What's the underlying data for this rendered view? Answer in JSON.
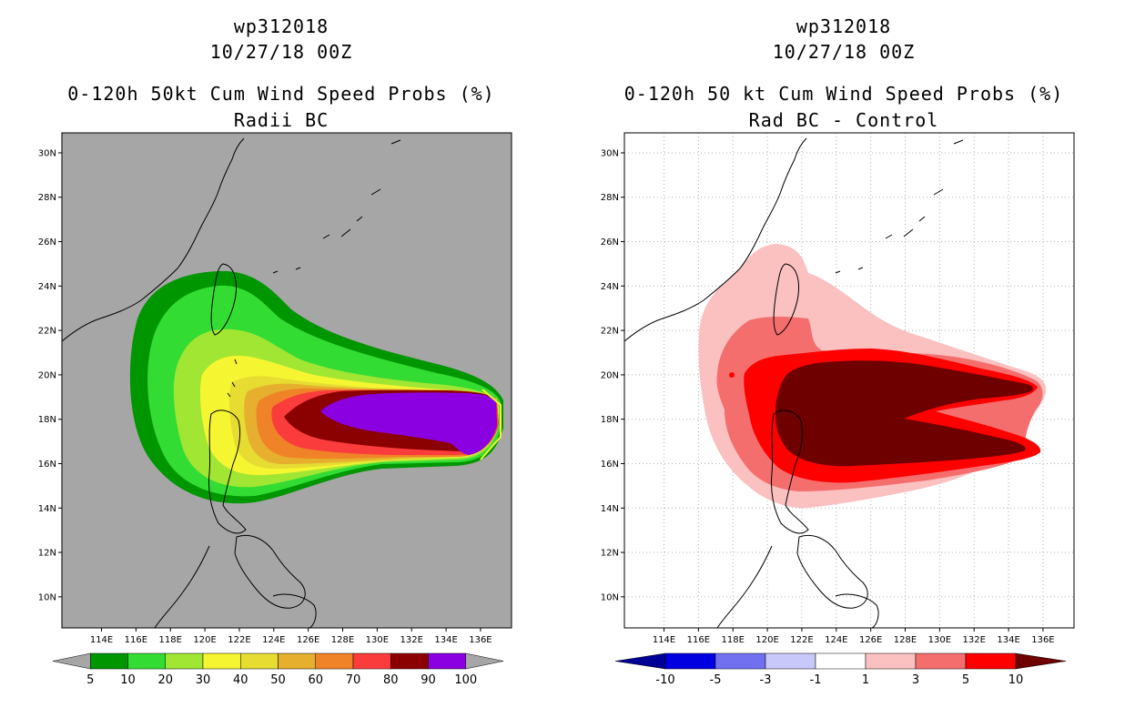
{
  "left": {
    "storm_id": "wp312018",
    "datetime": "10/27/18 00Z",
    "title": "0-120h 50kt Cum Wind Speed Probs (%)",
    "subtitle": "Radii BC",
    "background_color": "#a6a6a6",
    "colorbar": {
      "labels": [
        "5",
        "10",
        "20",
        "30",
        "40",
        "50",
        "60",
        "70",
        "80",
        "90",
        "100"
      ],
      "colors": [
        "#009600",
        "#33dc33",
        "#a0e632",
        "#f5f532",
        "#e6dc32",
        "#e6af2d",
        "#f08228",
        "#fa3c3c",
        "#8b0000",
        "#8b00e1"
      ],
      "end_color_low": "#a6a6a6",
      "end_color_high": "#a6a6a6"
    }
  },
  "right": {
    "storm_id": "wp312018",
    "datetime": "10/27/18 00Z",
    "title": "0-120h 50 kt Cum Wind Speed Probs (%)",
    "subtitle": "Rad BC - Control",
    "background_color": "#ffffff",
    "colorbar": {
      "labels": [
        "-10",
        "-5",
        "-3",
        "-1",
        "1",
        "3",
        "5",
        "10"
      ],
      "colors": [
        "#0000e1",
        "#7070f0",
        "#c8c8fa",
        "#ffffff",
        "#fbc0c0",
        "#f56e6e",
        "#ff0000"
      ],
      "end_color_low": "#000096",
      "end_color_high": "#6e0000"
    }
  },
  "axes": {
    "lat_labels": [
      "30N",
      "28N",
      "26N",
      "24N",
      "22N",
      "20N",
      "18N",
      "16N",
      "14N",
      "12N",
      "10N"
    ],
    "lon_labels": [
      "114E",
      "116E",
      "118E",
      "120E",
      "122E",
      "124E",
      "126E",
      "128E",
      "130E",
      "132E",
      "134E",
      "136E"
    ]
  }
}
